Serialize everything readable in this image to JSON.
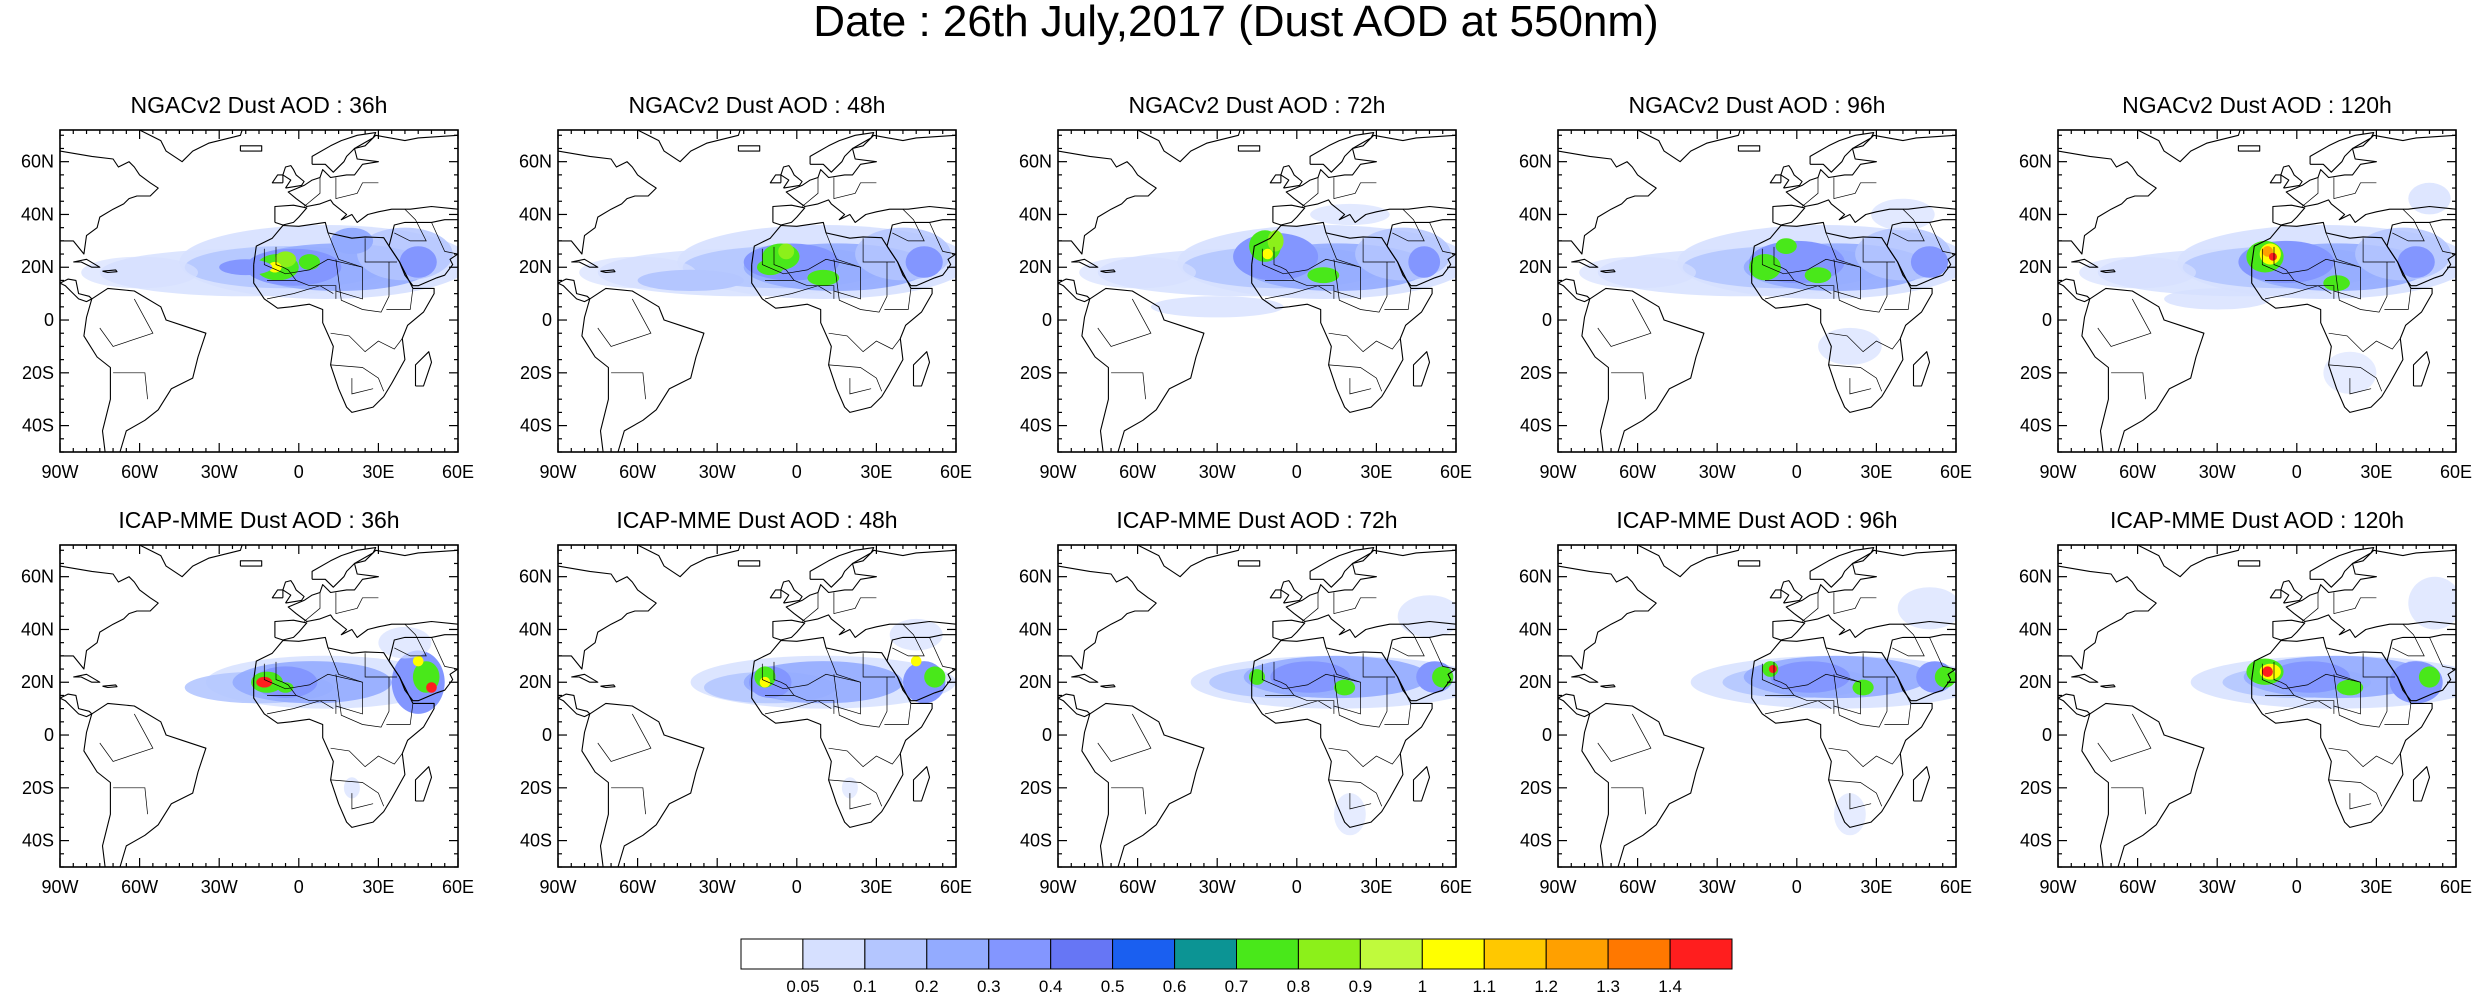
{
  "figure_title": "Date : 26th July,2017 (Dust AOD at 550nm)",
  "panels": [
    {
      "title": "NGACv2 Dust AOD : 36h"
    },
    {
      "title": "NGACv2 Dust AOD : 48h"
    },
    {
      "title": "NGACv2 Dust AOD : 72h"
    },
    {
      "title": "NGACv2 Dust AOD : 96h"
    },
    {
      "title": "NGACv2 Dust AOD : 120h"
    },
    {
      "title": "ICAP-MME Dust AOD : 36h"
    },
    {
      "title": "ICAP-MME Dust AOD : 48h"
    },
    {
      "title": "ICAP-MME Dust AOD : 72h"
    },
    {
      "title": "ICAP-MME Dust AOD : 96h"
    },
    {
      "title": "ICAP-MME Dust AOD : 120h"
    }
  ],
  "axes": {
    "lon_ticks": [
      "90W",
      "60W",
      "30W",
      "0",
      "30E",
      "60E"
    ],
    "lat_ticks": [
      "60N",
      "40N",
      "20N",
      "0",
      "20S",
      "40S"
    ],
    "lon_range": [
      -90,
      60
    ],
    "lat_range": [
      -50,
      72
    ]
  },
  "colorbar": {
    "labels": [
      "0.05",
      "0.1",
      "0.2",
      "0.3",
      "0.4",
      "0.5",
      "0.6",
      "0.7",
      "0.8",
      "0.9",
      "1",
      "1.1",
      "1.2",
      "1.3",
      "1.4"
    ],
    "colors": [
      "#ffffff",
      "#d6e0ff",
      "#b4c6ff",
      "#93abff",
      "#8396ff",
      "#6676f5",
      "#1a5ff0",
      "#0c9494",
      "#49e81a",
      "#8cf01a",
      "#c0fa3c",
      "#ffff00",
      "#ffc800",
      "#ffa000",
      "#ff7800",
      "#ff1e1e"
    ]
  }
}
